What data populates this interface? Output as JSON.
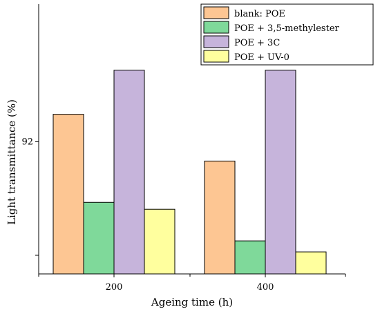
{
  "chart_data": {
    "type": "bar",
    "categories": [
      "200",
      "400"
    ],
    "series": [
      {
        "name": "blank: POE",
        "values": [
          93.0,
          91.3
        ],
        "color": "#fdc693"
      },
      {
        "name": "POE + 3,5-methylester",
        "values": [
          89.8,
          88.4
        ],
        "color": "#7fd99a"
      },
      {
        "name": "POE + 3C",
        "values": [
          94.6,
          94.6
        ],
        "color": "#c6b4db"
      },
      {
        "name": "POE + UV-0",
        "values": [
          89.55,
          88.0
        ],
        "color": "#ffff9e"
      }
    ],
    "xlabel": "Ageing time (h)",
    "ylabel": "Light transmittance (%)",
    "yticks": [
      92
    ],
    "ylim": [
      87.2,
      97.0
    ],
    "legend": "top-right",
    "grid": false
  }
}
